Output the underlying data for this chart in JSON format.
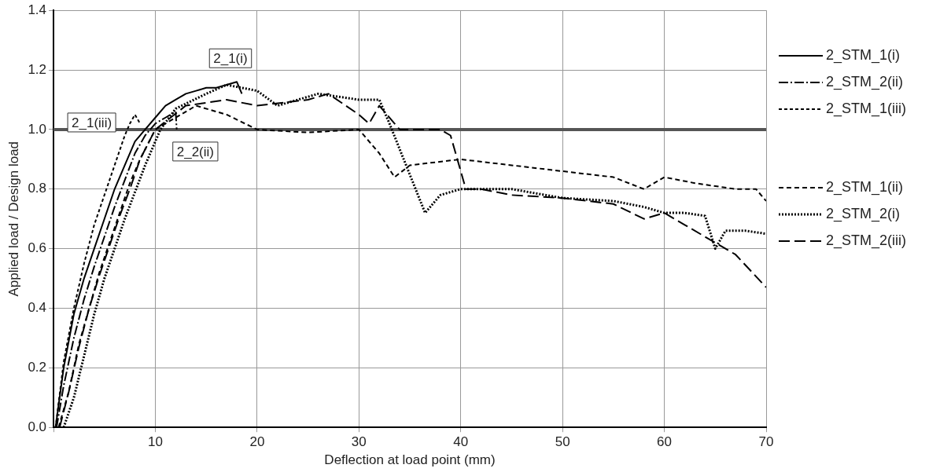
{
  "chart_data": {
    "type": "line",
    "xlabel": "Deflection at load point (mm)",
    "ylabel": "Applied load / Design load",
    "xlim": [
      0,
      70
    ],
    "ylim": [
      0,
      1.4
    ],
    "xticks": [
      {
        "value": 0,
        "label": null
      },
      10,
      20,
      30,
      40,
      50,
      60,
      70
    ],
    "yticks": [
      {
        "value": 0,
        "label": "0.0"
      },
      {
        "value": 0.2,
        "label": "0.2"
      },
      {
        "value": 0.4,
        "label": "0.4"
      },
      {
        "value": 0.6,
        "label": "0.6"
      },
      {
        "value": 0.8,
        "label": "0.8"
      },
      {
        "value": 1,
        "label": "1.0"
      },
      {
        "value": 1.2,
        "label": "1.2"
      },
      {
        "value": 1.4,
        "label": "1.4"
      }
    ],
    "grid": true,
    "legend": "right",
    "marker": "none",
    "ref_lines": [
      {
        "axis": "y",
        "value": 1,
        "color": "#555555"
      }
    ],
    "annotations": [
      {
        "text": "2_1(i)",
        "x": 18,
        "y": 1.16
      },
      {
        "text": "2_1(iii)",
        "x": 8,
        "y": 1.05
      },
      {
        "text": "2_2(ii)",
        "x": 12,
        "y": 1.0
      }
    ],
    "series": [
      {
        "name": "2_STM_1(i)",
        "color": "#000000",
        "line_style": "solid",
        "x": [
          0.2,
          1,
          2,
          3,
          4,
          5,
          6,
          7,
          8,
          9,
          10,
          11,
          12,
          13,
          14,
          15,
          16,
          17,
          18,
          18.5
        ],
        "values": [
          0,
          0.2,
          0.38,
          0.5,
          0.6,
          0.7,
          0.8,
          0.88,
          0.96,
          1.0,
          1.04,
          1.08,
          1.1,
          1.12,
          1.13,
          1.14,
          1.14,
          1.15,
          1.16,
          1.12
        ]
      },
      {
        "name": "2_STM_2(ii)",
        "color": "#000000",
        "line_style": "dashed",
        "x": [
          0.3,
          1,
          2,
          3,
          4,
          5,
          6,
          7,
          8,
          9,
          10,
          11,
          12,
          12.1
        ],
        "values": [
          0,
          0.14,
          0.3,
          0.43,
          0.54,
          0.64,
          0.74,
          0.83,
          0.92,
          0.98,
          1.02,
          1.04,
          1.06,
          1.0
        ]
      },
      {
        "name": "2_STM_1(iii)",
        "color": "#000000",
        "line_style": "dashed",
        "x": [
          0.2,
          1,
          2,
          3,
          4,
          5,
          6,
          7,
          7.5,
          8,
          8.5
        ],
        "values": [
          0,
          0.22,
          0.4,
          0.55,
          0.68,
          0.78,
          0.88,
          0.98,
          1.02,
          1.05,
          1.02
        ]
      },
      {
        "name": "2_STM_1(ii)",
        "color": "#000000",
        "line_style": "dashed",
        "x": [
          0.5,
          1.5,
          2.5,
          3.5,
          4.5,
          5.5,
          6.5,
          7.5,
          8.5,
          10,
          12,
          14,
          17,
          20,
          25,
          30,
          32,
          33.5,
          35,
          40,
          45,
          50,
          55,
          58,
          60,
          63,
          67,
          69,
          70
        ],
        "values": [
          0,
          0.12,
          0.28,
          0.4,
          0.52,
          0.62,
          0.72,
          0.82,
          0.9,
          1.0,
          1.04,
          1.08,
          1.05,
          1.0,
          0.99,
          1.0,
          0.92,
          0.84,
          0.88,
          0.9,
          0.88,
          0.86,
          0.84,
          0.8,
          0.84,
          0.82,
          0.8,
          0.8,
          0.76
        ]
      },
      {
        "name": "2_STM_2(i)",
        "color": "#000000",
        "line_style": "dotted",
        "x": [
          1,
          2,
          3,
          4,
          5,
          6,
          7,
          8,
          9,
          10.5,
          12,
          15,
          17,
          20,
          22,
          26,
          30,
          32,
          33,
          36.5,
          38,
          40,
          45,
          50,
          55,
          58,
          60,
          62,
          64,
          65,
          66,
          68,
          70
        ],
        "values": [
          0,
          0.1,
          0.24,
          0.38,
          0.5,
          0.6,
          0.7,
          0.79,
          0.88,
          1.0,
          1.07,
          1.12,
          1.15,
          1.13,
          1.08,
          1.12,
          1.1,
          1.1,
          1.02,
          0.72,
          0.78,
          0.8,
          0.8,
          0.77,
          0.76,
          0.74,
          0.72,
          0.72,
          0.71,
          0.6,
          0.66,
          0.66,
          0.65
        ]
      },
      {
        "name": "2_STM_2(iii)",
        "color": "#000000",
        "line_style": "dashed",
        "x": [
          0.6,
          1.5,
          2.5,
          3.5,
          4.5,
          5.5,
          6.5,
          7.5,
          8.5,
          10,
          13,
          17,
          20,
          25,
          27,
          30,
          31,
          32,
          34,
          38,
          39,
          40.5,
          42,
          45,
          50,
          55,
          58,
          60,
          62,
          65,
          67,
          70
        ],
        "values": [
          0,
          0.12,
          0.27,
          0.4,
          0.51,
          0.61,
          0.71,
          0.8,
          0.9,
          1.0,
          1.08,
          1.1,
          1.08,
          1.1,
          1.12,
          1.05,
          1.02,
          1.08,
          1.0,
          1.0,
          0.98,
          0.8,
          0.8,
          0.78,
          0.77,
          0.75,
          0.7,
          0.72,
          0.68,
          0.62,
          0.58,
          0.47
        ]
      }
    ]
  }
}
